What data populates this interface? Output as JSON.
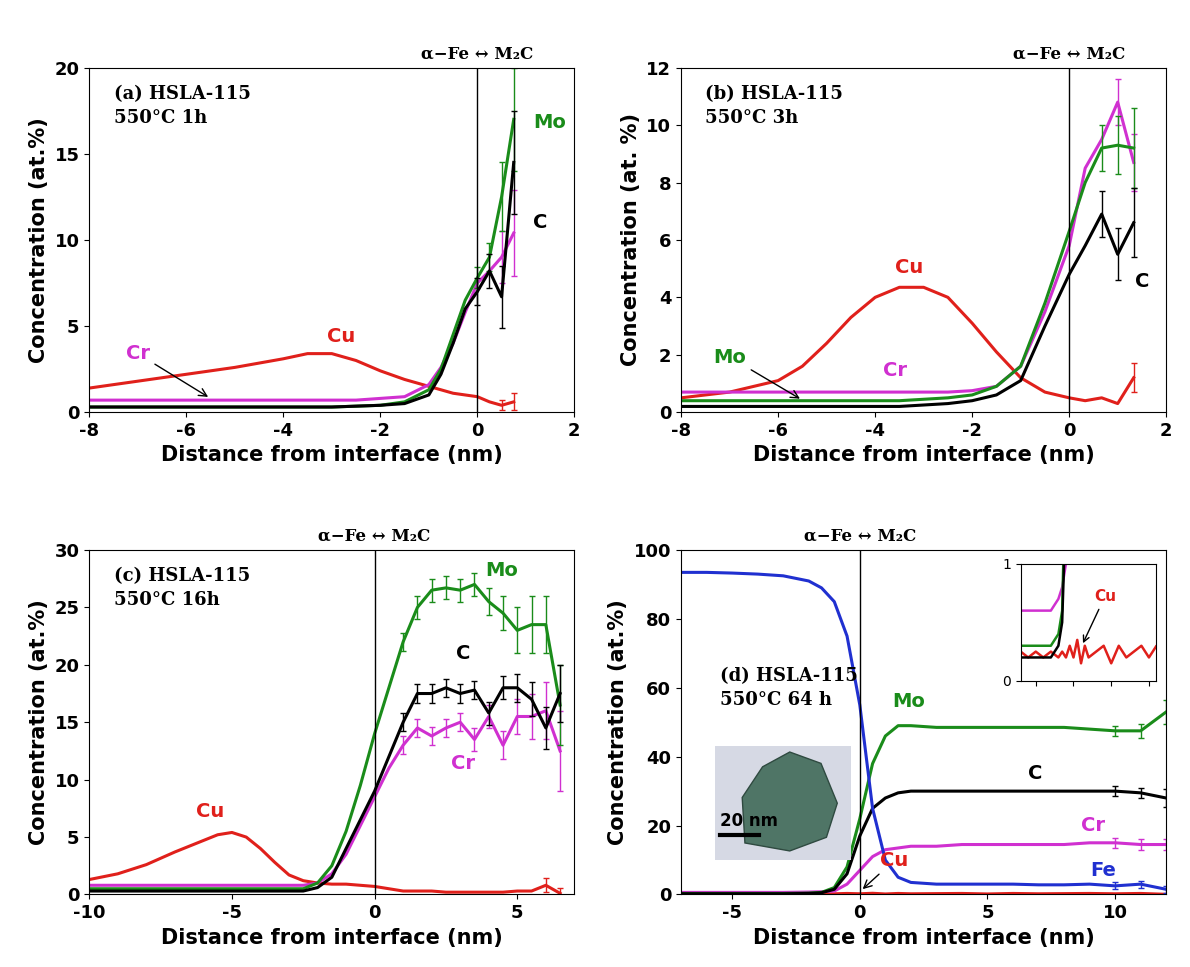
{
  "chart_data": [
    {
      "type": "line",
      "title": "(a) HSLA-115\n550°C 1h",
      "header": "α−Fe ↔ M₂C",
      "x_label": "Distance from interface (nm)",
      "y_label": "Concentration (at.%)",
      "xlim": [
        -8,
        2
      ],
      "xticks": [
        -8,
        -6,
        -4,
        -2,
        0,
        2
      ],
      "ylim": [
        0,
        20
      ],
      "yticks": [
        0,
        5,
        10,
        15,
        20
      ],
      "vline": 0,
      "x": [
        -8,
        -7,
        -6,
        -5,
        -4,
        -3.5,
        -3,
        -2.5,
        -2,
        -1.5,
        -1,
        -0.75,
        -0.5,
        -0.25,
        0,
        0.25,
        0.5,
        0.75
      ],
      "series": [
        {
          "name": "Cu",
          "color": "#e0201b",
          "values": [
            1.4,
            1.8,
            2.2,
            2.6,
            3.1,
            3.4,
            3.4,
            3.0,
            2.4,
            1.9,
            1.5,
            1.3,
            1.1,
            1.0,
            0.9,
            0.6,
            0.4,
            0.6
          ],
          "errors": [
            null,
            null,
            null,
            null,
            null,
            null,
            null,
            null,
            null,
            null,
            null,
            null,
            null,
            null,
            null,
            null,
            0.3,
            0.5
          ]
        },
        {
          "name": "Cr",
          "color": "#d030d0",
          "values": [
            0.7,
            0.7,
            0.7,
            0.7,
            0.7,
            0.7,
            0.7,
            0.7,
            0.8,
            0.9,
            1.6,
            2.6,
            4.0,
            5.8,
            7.5,
            8.2,
            9.0,
            10.4
          ],
          "errors": [
            null,
            null,
            null,
            null,
            null,
            null,
            null,
            null,
            null,
            null,
            null,
            null,
            null,
            null,
            null,
            null,
            1.5,
            2.5
          ]
        },
        {
          "name": "Mo",
          "color": "#1a8c1a",
          "values": [
            0.3,
            0.3,
            0.3,
            0.3,
            0.3,
            0.3,
            0.3,
            0.35,
            0.4,
            0.6,
            1.3,
            2.5,
            4.5,
            6.5,
            7.8,
            9.0,
            12.5,
            17.0
          ],
          "errors": [
            null,
            null,
            null,
            null,
            null,
            null,
            null,
            null,
            null,
            null,
            null,
            null,
            null,
            null,
            0.6,
            0.8,
            2.0,
            3.0
          ]
        },
        {
          "name": "C",
          "color": "#000000",
          "values": [
            0.3,
            0.3,
            0.3,
            0.3,
            0.3,
            0.3,
            0.3,
            0.35,
            0.4,
            0.5,
            1.0,
            2.2,
            4.0,
            6.0,
            7.0,
            8.2,
            6.7,
            14.5
          ],
          "errors": [
            null,
            null,
            null,
            null,
            null,
            null,
            null,
            null,
            null,
            null,
            null,
            null,
            null,
            null,
            0.8,
            1.0,
            1.8,
            3.0
          ]
        }
      ]
    },
    {
      "type": "line",
      "title": "(b) HSLA-115\n550°C 3h",
      "header": "α−Fe ↔ M₂C",
      "x_label": "Distance from interface (nm)",
      "y_label": "Concentration (at. %)",
      "xlim": [
        -8,
        2
      ],
      "xticks": [
        -8,
        -6,
        -4,
        -2,
        0,
        2
      ],
      "ylim": [
        0,
        12
      ],
      "yticks": [
        0,
        2,
        4,
        6,
        8,
        10,
        12
      ],
      "vline": 0,
      "x": [
        -8,
        -7,
        -6,
        -5.5,
        -5,
        -4.5,
        -4,
        -3.5,
        -3,
        -2.5,
        -2,
        -1.5,
        -1,
        -0.5,
        0,
        0.33,
        0.67,
        1,
        1.33
      ],
      "series": [
        {
          "name": "Cu",
          "color": "#e0201b",
          "values": [
            0.5,
            0.7,
            1.1,
            1.6,
            2.4,
            3.3,
            4.0,
            4.35,
            4.35,
            4.0,
            3.1,
            2.1,
            1.2,
            0.7,
            0.5,
            0.4,
            0.5,
            0.3,
            1.2
          ],
          "errors": [
            null,
            null,
            null,
            null,
            null,
            null,
            null,
            null,
            null,
            null,
            null,
            null,
            null,
            null,
            null,
            null,
            null,
            null,
            0.5
          ]
        },
        {
          "name": "Cr",
          "color": "#d030d0",
          "values": [
            0.7,
            0.7,
            0.7,
            0.7,
            0.7,
            0.7,
            0.7,
            0.7,
            0.7,
            0.7,
            0.75,
            0.9,
            1.6,
            3.5,
            5.8,
            8.5,
            9.5,
            10.8,
            8.7
          ],
          "errors": [
            null,
            null,
            null,
            null,
            null,
            null,
            null,
            null,
            null,
            null,
            null,
            null,
            null,
            null,
            null,
            null,
            null,
            0.8,
            1.0
          ]
        },
        {
          "name": "Mo",
          "color": "#1a8c1a",
          "values": [
            0.4,
            0.4,
            0.4,
            0.4,
            0.4,
            0.4,
            0.4,
            0.4,
            0.45,
            0.5,
            0.6,
            0.9,
            1.6,
            3.8,
            6.3,
            8.0,
            9.2,
            9.3,
            9.2
          ],
          "errors": [
            null,
            null,
            null,
            null,
            null,
            null,
            null,
            null,
            null,
            null,
            null,
            null,
            null,
            null,
            null,
            null,
            0.8,
            1.0,
            1.4
          ]
        },
        {
          "name": "C",
          "color": "#000000",
          "values": [
            0.2,
            0.2,
            0.2,
            0.2,
            0.2,
            0.2,
            0.2,
            0.2,
            0.25,
            0.3,
            0.4,
            0.6,
            1.1,
            3.0,
            4.8,
            5.8,
            6.9,
            5.5,
            6.6
          ],
          "errors": [
            null,
            null,
            null,
            null,
            null,
            null,
            null,
            null,
            null,
            null,
            null,
            null,
            null,
            null,
            null,
            null,
            0.8,
            0.9,
            1.2
          ]
        }
      ]
    },
    {
      "type": "line",
      "title": "(c) HSLA-115\n550°C 16h",
      "header": "α−Fe ↔ M₂C",
      "x_label": "Distance from interface (nm)",
      "y_label": "Concentration (at.%)",
      "xlim": [
        -10,
        7
      ],
      "xticks": [
        -10,
        -5,
        0,
        5
      ],
      "ylim": [
        0,
        30
      ],
      "yticks": [
        0,
        5,
        10,
        15,
        20,
        25,
        30
      ],
      "vline": 0,
      "x": [
        -10,
        -9,
        -8,
        -7,
        -6,
        -5.5,
        -5,
        -4.5,
        -4,
        -3.5,
        -3,
        -2.5,
        -2,
        -1.5,
        -1,
        -0.5,
        0,
        0.5,
        1,
        1.5,
        2,
        2.5,
        3,
        3.5,
        4,
        4.5,
        5,
        5.5,
        6,
        6.5
      ],
      "series": [
        {
          "name": "Cu",
          "color": "#e0201b",
          "values": [
            1.3,
            1.8,
            2.6,
            3.7,
            4.7,
            5.2,
            5.4,
            5.0,
            4.0,
            2.8,
            1.7,
            1.2,
            1.0,
            0.9,
            0.9,
            0.8,
            0.7,
            0.5,
            0.3,
            0.3,
            0.3,
            0.2,
            0.2,
            0.2,
            0.2,
            0.2,
            0.3,
            0.3,
            0.8,
            0.1
          ],
          "errors": [
            null,
            null,
            null,
            null,
            null,
            null,
            null,
            null,
            null,
            null,
            null,
            null,
            null,
            null,
            null,
            null,
            null,
            null,
            null,
            null,
            null,
            null,
            null,
            null,
            null,
            null,
            null,
            null,
            0.6,
            0.5
          ]
        },
        {
          "name": "Cr",
          "color": "#d030d0",
          "values": [
            0.8,
            0.8,
            0.8,
            0.8,
            0.8,
            0.8,
            0.8,
            0.8,
            0.8,
            0.8,
            0.8,
            0.8,
            1.0,
            1.8,
            3.5,
            6,
            8.5,
            11,
            13,
            14.5,
            13.8,
            14.5,
            15,
            13.5,
            15.5,
            13,
            15.5,
            15.5,
            16,
            12.5
          ],
          "errors": [
            null,
            null,
            null,
            null,
            null,
            null,
            null,
            null,
            null,
            null,
            null,
            null,
            null,
            null,
            null,
            null,
            null,
            null,
            0.8,
            0.8,
            0.8,
            0.8,
            0.8,
            1,
            1,
            1.2,
            1.5,
            2,
            2.5,
            3.5
          ]
        },
        {
          "name": "Mo",
          "color": "#1a8c1a",
          "values": [
            0.5,
            0.5,
            0.5,
            0.5,
            0.5,
            0.5,
            0.5,
            0.5,
            0.5,
            0.5,
            0.5,
            0.5,
            1.0,
            2.5,
            5.5,
            9.5,
            14,
            18,
            22,
            25,
            26.5,
            26.7,
            26.5,
            27,
            25.5,
            24.5,
            23,
            23.5,
            23.5,
            16.5
          ],
          "errors": [
            null,
            null,
            null,
            null,
            null,
            null,
            null,
            null,
            null,
            null,
            null,
            null,
            null,
            null,
            null,
            null,
            null,
            null,
            0.8,
            1,
            1,
            1,
            1,
            1,
            1.2,
            1.5,
            2,
            2.5,
            2.5,
            3.5
          ]
        },
        {
          "name": "C",
          "color": "#000000",
          "values": [
            0.3,
            0.3,
            0.3,
            0.3,
            0.3,
            0.3,
            0.3,
            0.3,
            0.3,
            0.3,
            0.3,
            0.3,
            0.6,
            1.5,
            4,
            6.5,
            9,
            12,
            15,
            17.5,
            17.5,
            18,
            17.5,
            17.8,
            15.8,
            18,
            18,
            17,
            14.5,
            17.5
          ],
          "errors": [
            null,
            null,
            null,
            null,
            null,
            null,
            null,
            null,
            null,
            null,
            null,
            null,
            null,
            null,
            null,
            null,
            null,
            null,
            0.8,
            0.8,
            0.8,
            0.8,
            0.8,
            0.8,
            1,
            1,
            1.2,
            1.5,
            1.8,
            2.5
          ]
        }
      ]
    },
    {
      "type": "line",
      "title": "(d) HSLA-115\n550°C 64 h",
      "header": "α−Fe ↔ M₂C",
      "x_label": "Distance from interface (nm)",
      "y_label": "Concentration (at.%)",
      "xlim": [
        -7,
        12
      ],
      "xticks": [
        -5,
        0,
        5,
        10
      ],
      "ylim": [
        0,
        100
      ],
      "yticks": [
        0,
        20,
        40,
        60,
        80,
        100
      ],
      "vline": 0,
      "x": [
        -7,
        -6,
        -5,
        -4,
        -3,
        -2,
        -1.5,
        -1,
        -0.5,
        0,
        0.5,
        1,
        1.5,
        2,
        3,
        4,
        5,
        6,
        7,
        8,
        9,
        10,
        11,
        12
      ],
      "series": [
        {
          "name": "Cu",
          "color": "#e0201b",
          "values": [
            0.25,
            0.2,
            0.25,
            0.2,
            0.25,
            0.2,
            0.25,
            0.2,
            0.3,
            0.2,
            0.35,
            0.15,
            0.3,
            0.2,
            0.25,
            0.3,
            0.15,
            0.3,
            0.2,
            0.25,
            0.3,
            0.2,
            0.3,
            0.05
          ]
        },
        {
          "name": "Cr",
          "color": "#d030d0",
          "values": [
            0.6,
            0.6,
            0.6,
            0.6,
            0.6,
            0.7,
            0.8,
            1,
            3,
            7,
            11,
            13,
            13.5,
            14,
            14,
            14.5,
            14.5,
            14.5,
            14.5,
            14.5,
            15,
            15,
            14.5,
            14.5
          ],
          "errors": [
            null,
            null,
            null,
            null,
            null,
            null,
            null,
            null,
            null,
            null,
            null,
            null,
            null,
            null,
            null,
            null,
            null,
            null,
            null,
            null,
            null,
            1.5,
            1.5,
            1.5
          ]
        },
        {
          "name": "Mo",
          "color": "#1a8c1a",
          "values": [
            0.3,
            0.3,
            0.3,
            0.3,
            0.3,
            0.4,
            0.6,
            2,
            8,
            22,
            38,
            46,
            49,
            49,
            48.5,
            48.5,
            48.5,
            48.5,
            48.5,
            48.5,
            48,
            47.5,
            47.5,
            53
          ],
          "errors": [
            null,
            null,
            null,
            null,
            null,
            null,
            null,
            null,
            null,
            null,
            null,
            null,
            null,
            null,
            null,
            null,
            null,
            null,
            null,
            null,
            null,
            1.5,
            2,
            3.5
          ]
        },
        {
          "name": "C",
          "color": "#000000",
          "values": [
            0.2,
            0.2,
            0.2,
            0.2,
            0.2,
            0.3,
            0.5,
            1.5,
            6,
            17,
            25,
            28,
            29.5,
            30,
            30,
            30,
            30,
            30,
            30,
            30,
            30,
            30,
            29.5,
            28
          ],
          "errors": [
            null,
            null,
            null,
            null,
            null,
            null,
            null,
            null,
            null,
            null,
            null,
            null,
            null,
            null,
            null,
            null,
            null,
            null,
            null,
            null,
            null,
            1.5,
            1.5,
            2.5
          ]
        },
        {
          "name": "Fe",
          "color": "#2030d0",
          "values": [
            93.5,
            93.5,
            93.3,
            93,
            92.5,
            91,
            89,
            85,
            75,
            55,
            25,
            10,
            5,
            3.5,
            3,
            3,
            3,
            3,
            2.8,
            2.8,
            3,
            2.5,
            3,
            1.5
          ],
          "errors": [
            null,
            null,
            null,
            null,
            null,
            null,
            null,
            null,
            null,
            null,
            null,
            null,
            null,
            null,
            null,
            null,
            null,
            null,
            null,
            null,
            null,
            1,
            1,
            1
          ]
        }
      ],
      "inset": {
        "xlim": [
          -7,
          11
        ],
        "xticks": [
          -5,
          0,
          5,
          10
        ],
        "ylim": [
          0,
          1
        ],
        "yticks": [
          0,
          1
        ],
        "tick_labels": "y",
        "annotation": "Cu"
      },
      "image_label": "20 nm"
    }
  ]
}
